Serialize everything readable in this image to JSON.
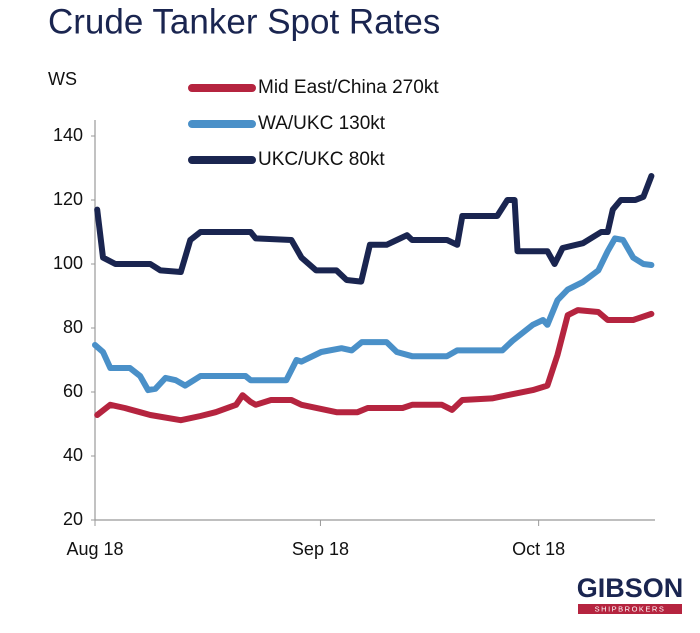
{
  "chart_data": {
    "type": "line",
    "title": "Crude Tanker Spot Rates",
    "ylabel": "WS",
    "ylim": [
      20,
      140
    ],
    "yticks": [
      20,
      40,
      60,
      80,
      100,
      120,
      140
    ],
    "xlim": [
      0,
      77
    ],
    "xticks": [
      {
        "value": 0,
        "label": "Aug 18"
      },
      {
        "value": 31,
        "label": "Sep 18"
      },
      {
        "value": 61,
        "label": "Oct 18"
      }
    ],
    "grid": false,
    "legend": "top-left",
    "series": [
      {
        "name": "Mid East/China 270kt",
        "color": "#b5243f",
        "x": [
          0.3,
          2.1,
          4.1,
          6.2,
          7.6,
          11.8,
          14.5,
          16.6,
          19.4,
          20.3,
          21.4,
          22.1,
          24.2,
          27,
          28.4,
          33.2,
          36.1,
          37.5,
          42.3,
          43.6,
          47.7,
          49.1,
          50.5,
          54.6,
          56.7,
          60.2,
          62.2,
          63.6,
          65,
          66.4,
          69.2,
          70.5,
          74,
          76.5
        ],
        "values": [
          52.8,
          56,
          55,
          53.7,
          52.8,
          51.2,
          52.5,
          53.7,
          56,
          59,
          56.9,
          56,
          57.5,
          57.5,
          56,
          53.7,
          53.7,
          55,
          55,
          56,
          56,
          54.4,
          57.5,
          58,
          59,
          60.6,
          62,
          71.6,
          84,
          85.6,
          85,
          82.5,
          82.5,
          84.4
        ]
      },
      {
        "name": "WA/UKC 130kt",
        "color": "#4a90c8",
        "x": [
          0,
          1.1,
          2.1,
          4.8,
          6.2,
          7.3,
          8.3,
          9.7,
          11.1,
          12.4,
          14.5,
          20.7,
          21.4,
          26.3,
          27.7,
          28.4,
          31.1,
          33.9,
          35.3,
          36.7,
          40.1,
          41.5,
          43.6,
          48.4,
          49.8,
          56,
          57.4,
          60.2,
          61.6,
          62.2,
          63.6,
          65,
          67.1,
          69.2,
          70.5,
          71.5,
          72.6,
          74,
          75.4,
          76.5
        ],
        "values": [
          74.7,
          72.5,
          67.5,
          67.5,
          65,
          60.6,
          61,
          64.4,
          63.7,
          62,
          65,
          65,
          63.7,
          63.7,
          70,
          69.5,
          72.5,
          73.7,
          73,
          75.6,
          75.6,
          72.5,
          71.2,
          71.2,
          73,
          73,
          76,
          81,
          82.5,
          81,
          88.7,
          92,
          94.4,
          98,
          104,
          108,
          107.5,
          102,
          100,
          99.7
        ]
      },
      {
        "name": "UKC/UKC 80kt",
        "color": "#1a2550",
        "x": [
          0.3,
          1.1,
          2.8,
          7.6,
          9,
          11.8,
          13.1,
          14.5,
          21.4,
          22.1,
          27,
          28.4,
          30.4,
          33.2,
          34.6,
          36.6,
          37.8,
          40.1,
          41.5,
          42.9,
          43.6,
          48.4,
          49.8,
          50.5,
          55.3,
          56.7,
          57.7,
          58.1,
          62.2,
          63.2,
          64.3,
          67.1,
          69.6,
          70.5,
          71.2,
          72.3,
          74.3,
          75.4,
          76.5
        ],
        "values": [
          117,
          102,
          100,
          100,
          98,
          97.5,
          107.5,
          110,
          110,
          108,
          107.5,
          102,
          98,
          98,
          95,
          94.5,
          106,
          106,
          107.5,
          109,
          107.5,
          107.5,
          106,
          115,
          115,
          120,
          120,
          104,
          104,
          100,
          105,
          106.5,
          110,
          110,
          117,
          120,
          120,
          121,
          127.5
        ]
      }
    ]
  },
  "logo": {
    "name": "GIBSON",
    "tagline": "SHIPBROKERS"
  }
}
